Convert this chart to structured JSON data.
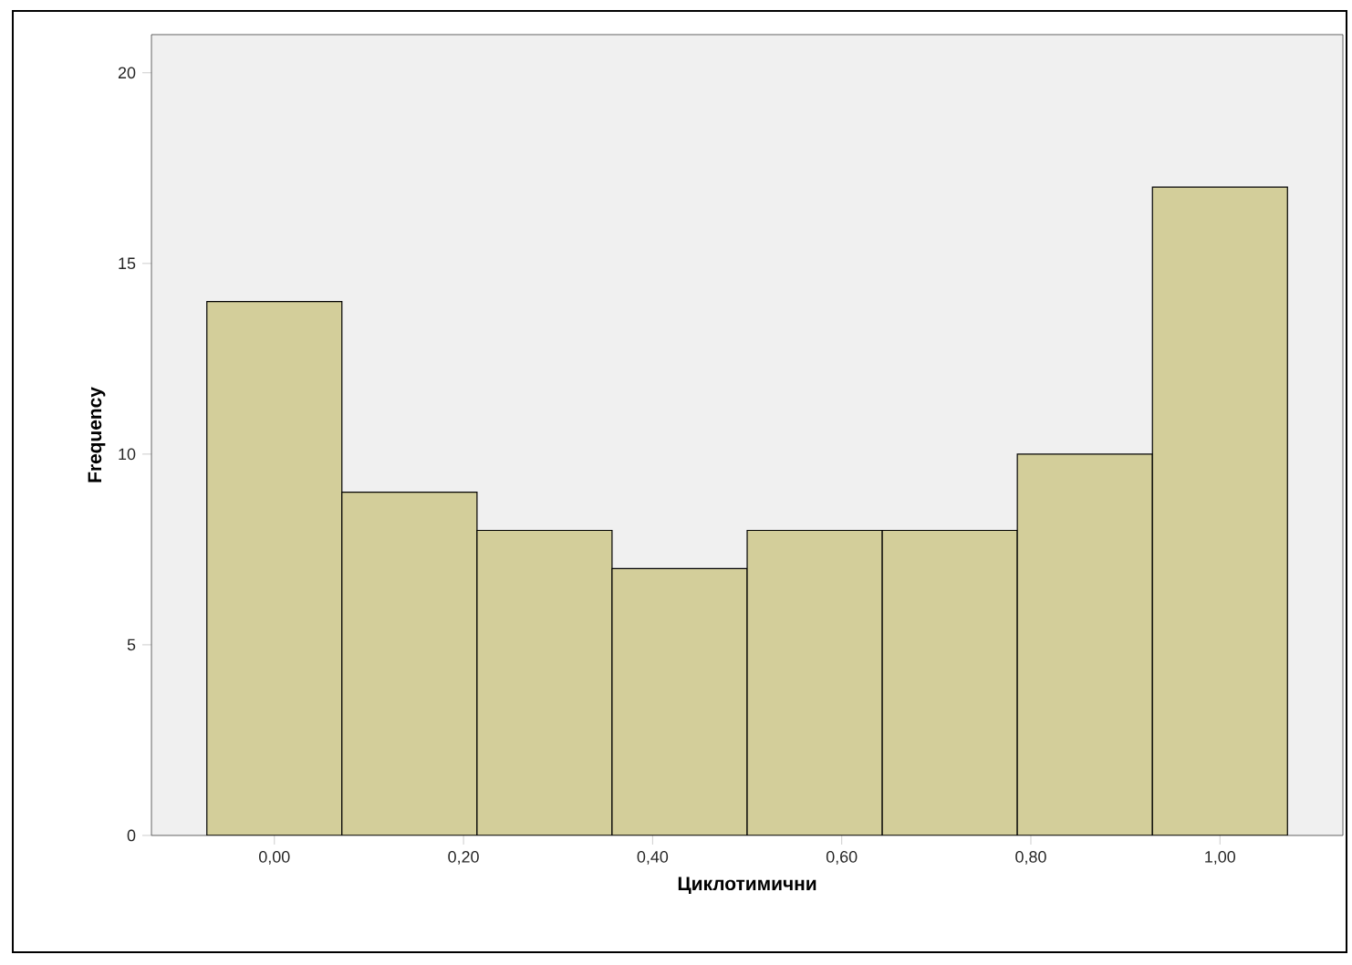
{
  "chart_data": {
    "type": "histogram",
    "xlabel": "Циклотимични",
    "ylabel": "Frequency",
    "bins": [
      -0.0714,
      0.0714,
      0.2143,
      0.3571,
      0.5,
      0.6429,
      0.7857,
      0.9286,
      1.0714
    ],
    "values": [
      14,
      9,
      8,
      7,
      8,
      8,
      10,
      17
    ],
    "color": "#d3ce9a",
    "xlim": [
      -0.13,
      1.13
    ],
    "ylim": [
      0,
      21
    ],
    "xticks": [
      {
        "value": 0,
        "label": "0,00"
      },
      {
        "value": 0.2,
        "label": "0,20"
      },
      {
        "value": 0.4,
        "label": "0,40"
      },
      {
        "value": 0.6,
        "label": "0,60"
      },
      {
        "value": 0.8,
        "label": "0,80"
      },
      {
        "value": 1,
        "label": "1,00"
      }
    ],
    "yticks": [
      0,
      5,
      10,
      15,
      20
    ],
    "grid": false
  }
}
